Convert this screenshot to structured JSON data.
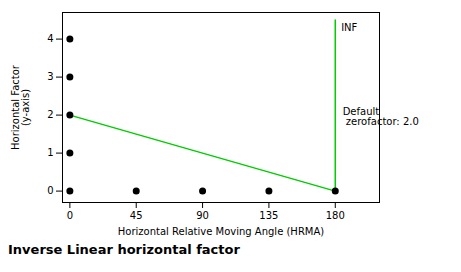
{
  "chart_data": {
    "type": "line",
    "title": "Inverse Linear horizontal factor",
    "xlabel": "Horizontal Relative Moving Angle (HRMA)",
    "ylabel": "Horizontal Factor\n(y-axis)",
    "xlim": [
      -5,
      210
    ],
    "ylim": [
      -0.3,
      4.7
    ],
    "xticks": [
      0,
      45,
      90,
      135,
      180
    ],
    "yticks": [
      0,
      1,
      2,
      3,
      4
    ],
    "series": [
      {
        "type": "line",
        "color": "#00cc00",
        "x": [
          0,
          180
        ],
        "values": [
          2.0,
          0.0
        ]
      },
      {
        "type": "line",
        "color": "#00cc00",
        "x": [
          180,
          180
        ],
        "values": [
          0,
          4.5
        ]
      },
      {
        "type": "scatter",
        "color": "#000000",
        "marker": "circle",
        "x": [
          0,
          0,
          0,
          0,
          0,
          45,
          90,
          135,
          180
        ],
        "values": [
          0,
          1,
          2,
          3,
          4,
          0,
          0,
          0,
          0
        ]
      }
    ],
    "annotations": [
      {
        "text": "INF",
        "x": 184,
        "y": 4.4
      },
      {
        "text": "Default\n zerofactor: 2.0",
        "x": 185,
        "y": 2.2
      }
    ]
  }
}
